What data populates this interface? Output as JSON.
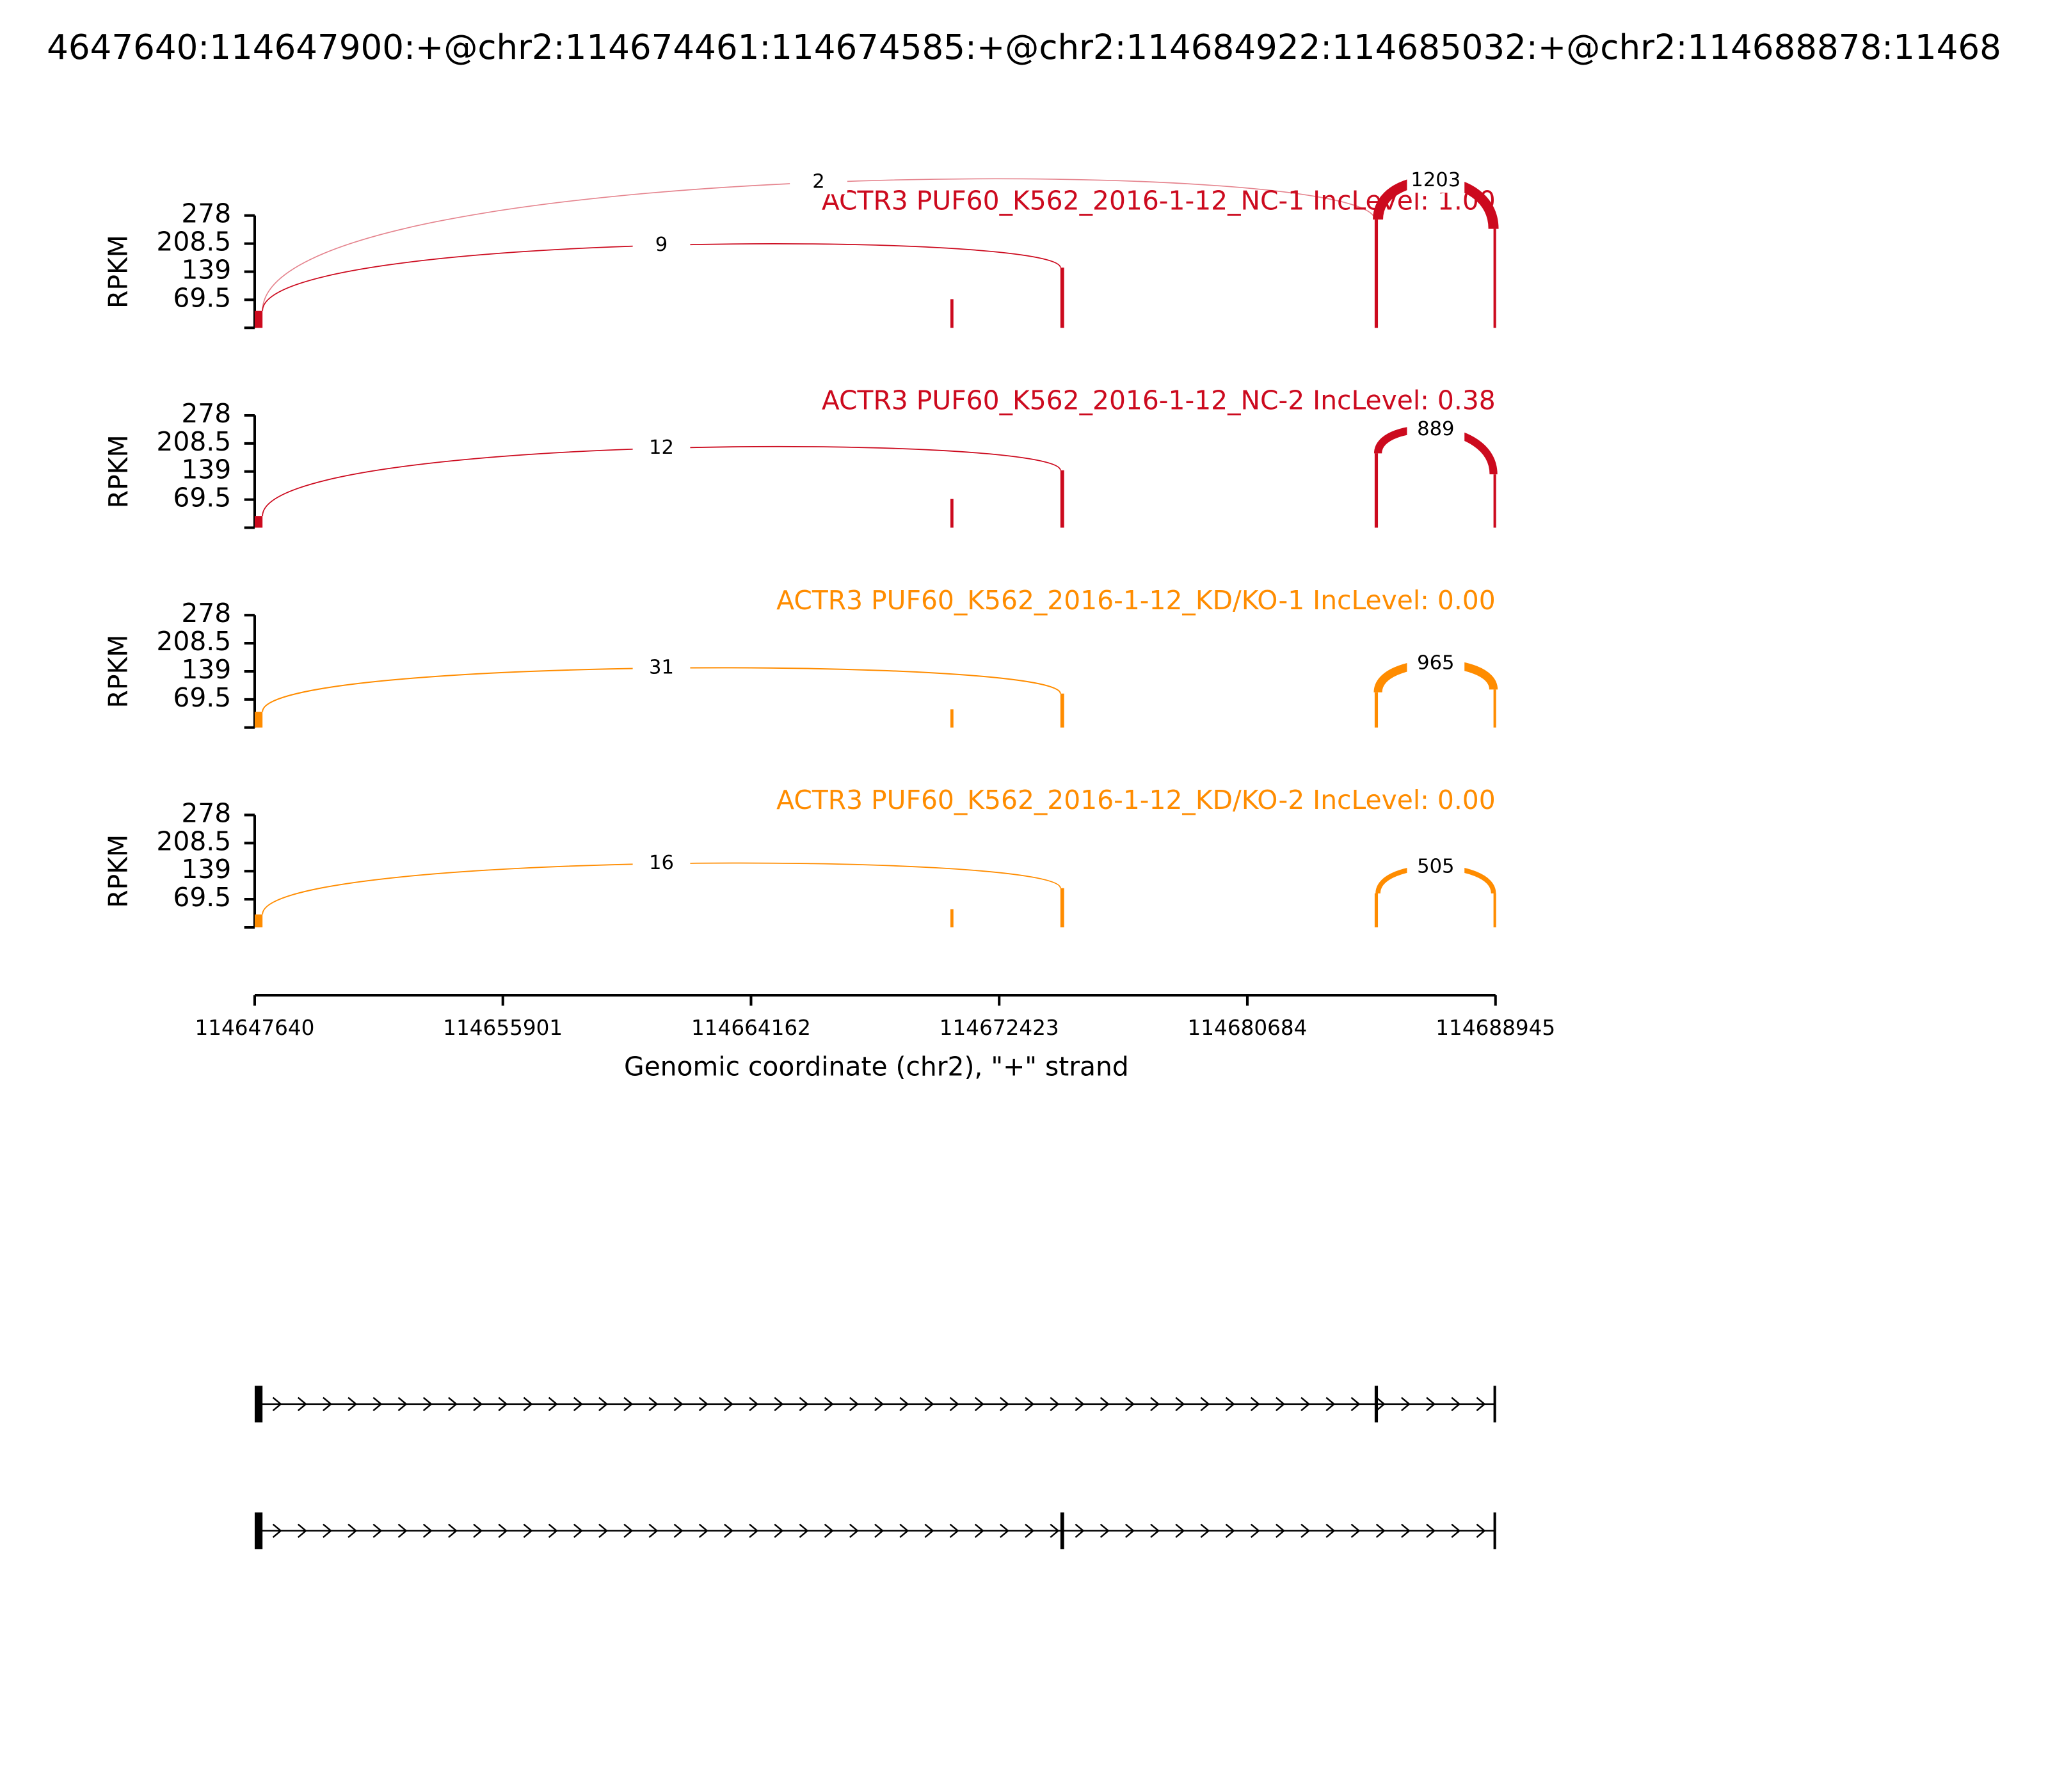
{
  "chart_data": {
    "type": "sashimi",
    "title": "4647640:114647900:+@chr2:114674461:114674585:+@chr2:114684922:114685032:+@chr2:114688878:11468",
    "xlabel": "Genomic coordinate (chr2), \"+\" strand",
    "xlim": [
      114647640,
      114688945
    ],
    "xticks": [
      114647640,
      114655901,
      114664162,
      114672423,
      114680684,
      114688945
    ],
    "panels": [
      {
        "title": "ACTR3 PUF60_K562_2016-1-12_NC-1 IncLevel: 1.00",
        "color": "#cc0a1e",
        "ylabel": "RPKM",
        "ylim": [
          0,
          278
        ],
        "yticks": [
          69.5,
          139,
          208.5,
          278
        ],
        "coverage": [
          {
            "start": 114647640,
            "end": 114647900,
            "rpkm": 42
          },
          {
            "start": 114670800,
            "end": 114670900,
            "rpkm": 71
          },
          {
            "start": 114674461,
            "end": 114674585,
            "rpkm": 149
          },
          {
            "start": 114684922,
            "end": 114685032,
            "rpkm": 268
          },
          {
            "start": 114688878,
            "end": 114688945,
            "rpkm": 245
          }
        ],
        "junctions": [
          {
            "start": 114647900,
            "end": 114674461,
            "count": 9
          },
          {
            "start": 114647900,
            "end": 114684922,
            "count": 2
          },
          {
            "start": 114685032,
            "end": 114688878,
            "count": 1203
          }
        ]
      },
      {
        "title": "ACTR3 PUF60_K562_2016-1-12_NC-2 IncLevel: 0.38",
        "color": "#cc0a1e",
        "ylabel": "RPKM",
        "ylim": [
          0,
          278
        ],
        "yticks": [
          69.5,
          139,
          208.5,
          278
        ],
        "coverage": [
          {
            "start": 114647640,
            "end": 114647900,
            "rpkm": 29
          },
          {
            "start": 114670800,
            "end": 114670900,
            "rpkm": 71
          },
          {
            "start": 114674461,
            "end": 114674585,
            "rpkm": 142
          },
          {
            "start": 114684922,
            "end": 114685032,
            "rpkm": 184
          },
          {
            "start": 114688878,
            "end": 114688945,
            "rpkm": 132
          }
        ],
        "junctions": [
          {
            "start": 114647900,
            "end": 114674461,
            "count": 12
          },
          {
            "start": 114685032,
            "end": 114688878,
            "count": 889
          }
        ]
      },
      {
        "title": "ACTR3 PUF60_K562_2016-1-12_KD/KO-1 IncLevel: 0.00",
        "color": "#ff8c00",
        "ylabel": "RPKM",
        "ylim": [
          0,
          278
        ],
        "yticks": [
          69.5,
          139,
          208.5,
          278
        ],
        "coverage": [
          {
            "start": 114647640,
            "end": 114647900,
            "rpkm": 39
          },
          {
            "start": 114670800,
            "end": 114670900,
            "rpkm": 45
          },
          {
            "start": 114674461,
            "end": 114674585,
            "rpkm": 84
          },
          {
            "start": 114684922,
            "end": 114685032,
            "rpkm": 87
          },
          {
            "start": 114688878,
            "end": 114688945,
            "rpkm": 94
          }
        ],
        "junctions": [
          {
            "start": 114647900,
            "end": 114674461,
            "count": 31
          },
          {
            "start": 114685032,
            "end": 114688878,
            "count": 965
          }
        ]
      },
      {
        "title": "ACTR3 PUF60_K562_2016-1-12_KD/KO-2 IncLevel: 0.00",
        "color": "#ff8c00",
        "ylabel": "RPKM",
        "ylim": [
          0,
          278
        ],
        "yticks": [
          69.5,
          139,
          208.5,
          278
        ],
        "coverage": [
          {
            "start": 114647640,
            "end": 114647900,
            "rpkm": 32
          },
          {
            "start": 114670800,
            "end": 114670900,
            "rpkm": 45
          },
          {
            "start": 114674461,
            "end": 114674585,
            "rpkm": 97
          },
          {
            "start": 114684922,
            "end": 114685032,
            "rpkm": 84
          },
          {
            "start": 114688878,
            "end": 114688945,
            "rpkm": 84
          }
        ],
        "junctions": [
          {
            "start": 114647900,
            "end": 114674461,
            "count": 16
          },
          {
            "start": 114685032,
            "end": 114688878,
            "count": 505
          }
        ]
      }
    ],
    "transcripts": [
      {
        "exons": [
          [
            114647640,
            114647900
          ],
          [
            114684922,
            114685032
          ],
          [
            114688878,
            114688945
          ]
        ]
      },
      {
        "exons": [
          [
            114647640,
            114647900
          ],
          [
            114674461,
            114674585
          ],
          [
            114688878,
            114688945
          ]
        ]
      }
    ]
  }
}
